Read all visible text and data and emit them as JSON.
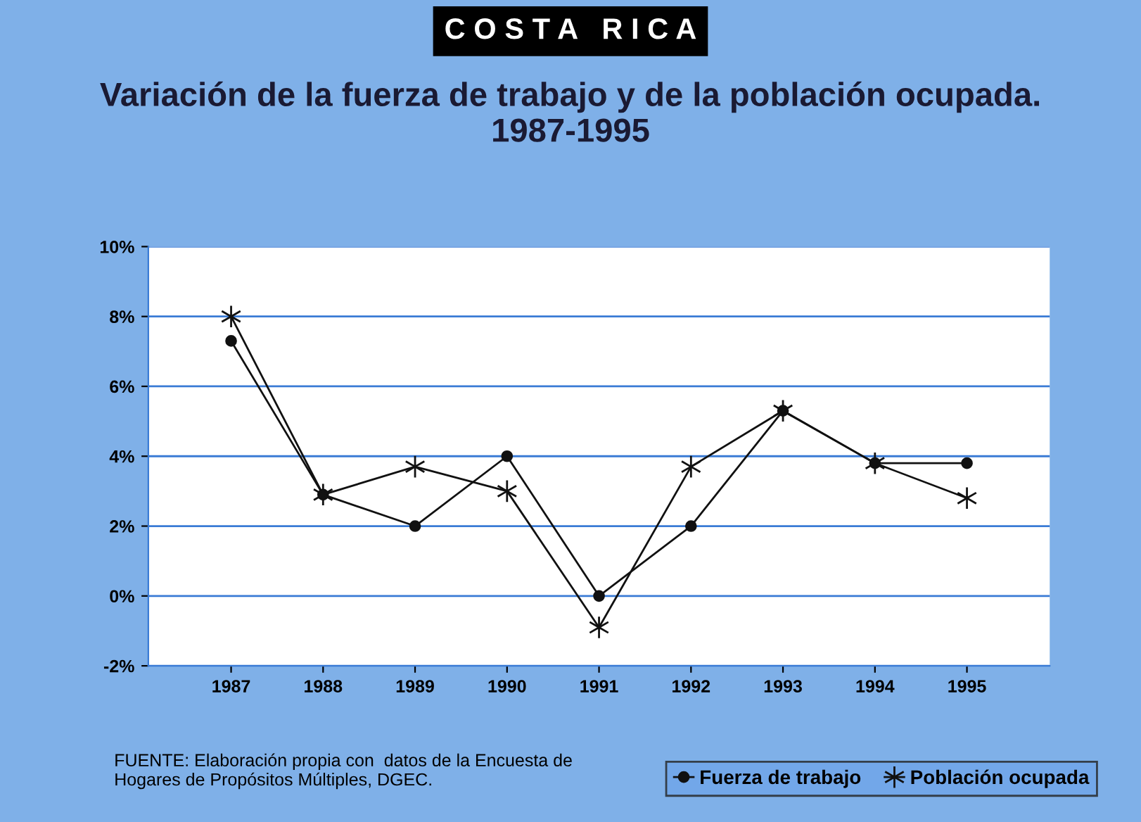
{
  "chart_data": {
    "type": "line",
    "title": "C O S T A   R I C A",
    "subtitle": "Variación de la fuerza de trabajo y de la población ocupada.\n1987-1995",
    "categories": [
      "1987",
      "1988",
      "1989",
      "1990",
      "1991",
      "1992",
      "1993",
      "1994",
      "1995"
    ],
    "series": [
      {
        "name": "Fuerza de trabajo",
        "color": "#111111",
        "marker": "circle",
        "values": [
          7.3,
          2.9,
          2.0,
          4.0,
          0.0,
          2.0,
          5.3,
          3.8,
          3.8
        ]
      },
      {
        "name": "Población ocupada",
        "color": "#111111",
        "marker": "cross",
        "values": [
          8.0,
          2.9,
          3.7,
          3.0,
          -0.9,
          3.7,
          5.3,
          3.8,
          2.8
        ]
      }
    ],
    "ylim": [
      -2,
      10
    ],
    "yticks": [
      {
        "value": -2,
        "label": "-2%"
      },
      {
        "value": 0,
        "label": "0%"
      },
      {
        "value": 2,
        "label": "2%"
      },
      {
        "value": 4,
        "label": "4%"
      },
      {
        "value": 6,
        "label": "6%"
      },
      {
        "value": 8,
        "label": "8%"
      },
      {
        "value": 10,
        "label": "10%"
      }
    ],
    "grid": "y",
    "legend": "bottom right",
    "line_style": "solid",
    "annotations": [
      "FUENTE: Elaboración propia con  datos de la Encuesta de\nHogares de Propósitos Múltiples, DGEC."
    ]
  }
}
